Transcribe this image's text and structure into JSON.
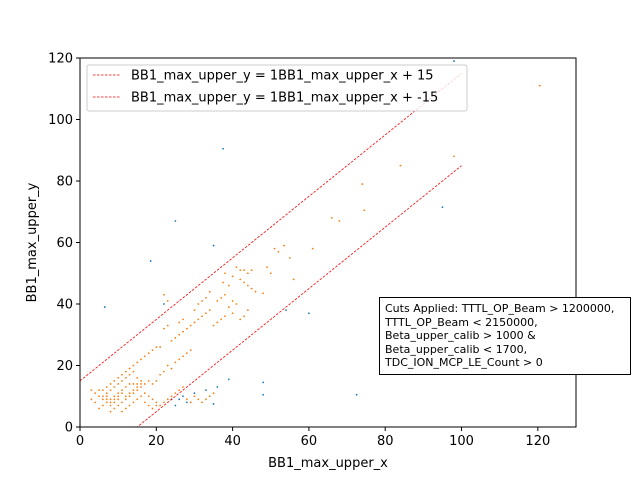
{
  "chart_data": {
    "type": "scatter",
    "xlabel": "BB1_max_upper_x",
    "ylabel": "BB1_max_upper_y",
    "xlim": [
      0,
      130
    ],
    "ylim": [
      0,
      120
    ],
    "xticks": [
      0,
      20,
      40,
      60,
      80,
      100,
      120
    ],
    "yticks": [
      0,
      20,
      40,
      60,
      80,
      100,
      120
    ],
    "grid": false,
    "legend_position": "top-left",
    "annotation": "Cuts Applied: TTTL_OP_Beam > 1200000, TTTL_OP_Beam < 2150000, Beta_upper_calib > 1000 & Beta_upper_calib < 1700, TDC_ION_MCP_LE_Count > 0",
    "lines": [
      {
        "name": "BB1_max_upper_y = 1BB1_max_upper_x + 15",
        "slope": 1,
        "intercept": 15,
        "color": "#ff0000"
      },
      {
        "name": "BB1_max_upper_y = 1BB1_max_upper_x + -15",
        "slope": 1,
        "intercept": -15,
        "color": "#ff0000"
      }
    ],
    "series": [
      {
        "color": "#1f77b4",
        "points": [
          [
            98,
            119
          ],
          [
            37.5,
            90.5
          ],
          [
            25,
            67
          ],
          [
            18.5,
            54
          ],
          [
            35,
            59
          ],
          [
            6.5,
            39
          ],
          [
            22,
            40
          ],
          [
            95,
            71.5
          ],
          [
            60,
            37
          ],
          [
            54,
            38
          ],
          [
            72.5,
            10.5
          ],
          [
            48,
            14.5
          ],
          [
            48,
            10.5
          ],
          [
            39,
            15.5
          ],
          [
            36,
            13
          ],
          [
            35,
            7.5
          ],
          [
            33,
            12
          ],
          [
            30,
            11
          ],
          [
            29,
            8
          ],
          [
            28,
            8
          ],
          [
            27,
            10
          ],
          [
            26,
            9
          ],
          [
            25,
            7
          ],
          [
            24,
            9
          ]
        ]
      },
      {
        "color": "#ff7f0e",
        "points": [
          [
            120.5,
            111
          ],
          [
            98,
            88
          ],
          [
            84,
            85
          ],
          [
            74,
            79
          ],
          [
            74.5,
            70.5
          ],
          [
            66,
            68
          ],
          [
            68,
            67
          ],
          [
            61,
            58
          ],
          [
            51,
            58
          ],
          [
            52,
            57
          ],
          [
            53.5,
            59
          ],
          [
            49,
            52
          ],
          [
            55,
            55
          ],
          [
            50,
            50
          ],
          [
            56,
            48
          ],
          [
            48,
            43.5
          ],
          [
            45,
            51
          ],
          [
            44,
            50
          ],
          [
            43,
            51
          ],
          [
            42,
            51
          ],
          [
            41,
            52
          ],
          [
            40,
            49
          ],
          [
            38,
            50
          ],
          [
            37.5,
            47
          ],
          [
            46,
            44
          ],
          [
            45,
            45
          ],
          [
            44,
            46
          ],
          [
            43,
            47
          ],
          [
            42,
            48
          ],
          [
            39,
            46
          ],
          [
            38,
            43
          ],
          [
            37,
            42
          ],
          [
            36,
            41
          ],
          [
            40,
            41
          ],
          [
            41,
            40
          ],
          [
            39,
            39
          ],
          [
            44,
            38
          ],
          [
            43,
            36
          ],
          [
            42,
            35
          ],
          [
            40,
            37
          ],
          [
            38,
            36
          ],
          [
            37,
            35
          ],
          [
            36,
            34
          ],
          [
            35,
            33
          ],
          [
            34,
            38
          ],
          [
            33,
            37
          ],
          [
            32,
            36
          ],
          [
            31,
            35
          ],
          [
            30,
            34
          ],
          [
            29,
            33
          ],
          [
            28,
            32
          ],
          [
            27,
            31
          ],
          [
            26,
            30
          ],
          [
            25,
            29
          ],
          [
            24,
            28
          ],
          [
            26,
            34
          ],
          [
            27,
            35
          ],
          [
            23,
            33
          ],
          [
            22,
            32
          ],
          [
            21,
            26
          ],
          [
            22,
            43
          ],
          [
            23,
            41
          ],
          [
            30,
            38
          ],
          [
            31,
            40
          ],
          [
            32,
            41
          ],
          [
            33,
            42
          ],
          [
            34,
            44
          ],
          [
            29,
            25
          ],
          [
            28,
            24
          ],
          [
            27,
            23
          ],
          [
            26,
            22
          ],
          [
            25,
            21
          ],
          [
            23,
            20
          ],
          [
            24,
            19
          ],
          [
            22,
            18
          ],
          [
            21,
            17
          ],
          [
            20,
            15
          ],
          [
            19,
            14
          ],
          [
            18,
            15
          ],
          [
            17,
            14
          ],
          [
            16,
            13
          ],
          [
            15,
            12
          ],
          [
            14,
            11
          ],
          [
            13,
            10
          ],
          [
            12,
            9
          ],
          [
            11,
            8
          ],
          [
            10,
            9
          ],
          [
            9,
            8
          ],
          [
            8,
            7
          ],
          [
            7,
            8
          ],
          [
            6,
            7
          ],
          [
            5,
            6
          ],
          [
            4,
            8
          ],
          [
            3,
            9
          ],
          [
            7,
            11
          ],
          [
            8,
            12
          ],
          [
            9,
            13
          ],
          [
            10,
            14
          ],
          [
            11,
            15
          ],
          [
            12,
            16
          ],
          [
            13,
            17
          ],
          [
            14,
            18
          ],
          [
            15,
            16
          ],
          [
            16,
            15
          ],
          [
            17,
            11
          ],
          [
            18,
            10
          ],
          [
            19,
            9
          ],
          [
            20,
            8
          ],
          [
            21,
            7
          ],
          [
            22,
            8
          ],
          [
            23,
            9
          ],
          [
            24,
            10
          ],
          [
            25,
            11
          ],
          [
            26,
            12
          ],
          [
            27,
            13
          ],
          [
            28,
            9
          ],
          [
            29,
            8
          ],
          [
            30,
            10
          ],
          [
            31,
            9
          ],
          [
            32,
            8
          ],
          [
            33,
            9
          ],
          [
            34,
            10
          ],
          [
            35,
            11
          ],
          [
            8,
            5
          ],
          [
            9,
            6
          ],
          [
            10,
            7
          ],
          [
            11,
            5
          ],
          [
            12,
            6
          ],
          [
            13,
            7
          ],
          [
            14,
            8
          ],
          [
            15,
            9
          ],
          [
            16,
            10
          ],
          [
            17,
            8
          ],
          [
            18,
            7
          ],
          [
            19,
            6
          ],
          [
            20,
            7
          ],
          [
            6,
            10
          ],
          [
            7,
            9
          ],
          [
            8,
            9
          ],
          [
            9,
            10
          ],
          [
            10,
            10
          ],
          [
            11,
            11
          ],
          [
            12,
            10
          ],
          [
            13,
            11
          ],
          [
            14,
            12
          ],
          [
            15,
            13
          ],
          [
            5,
            12
          ],
          [
            6,
            12
          ],
          [
            7,
            13
          ],
          [
            8,
            14
          ],
          [
            9,
            15
          ],
          [
            10,
            16
          ],
          [
            11,
            17
          ],
          [
            12,
            18
          ],
          [
            13,
            19
          ],
          [
            14,
            20
          ],
          [
            15,
            21
          ],
          [
            16,
            22
          ],
          [
            17,
            23
          ],
          [
            18,
            24
          ],
          [
            19,
            25
          ],
          [
            20,
            26
          ],
          [
            8,
            8
          ],
          [
            9,
            9
          ],
          [
            10,
            11
          ],
          [
            11,
            12
          ],
          [
            12,
            13
          ],
          [
            13,
            14
          ],
          [
            14,
            14
          ],
          [
            15,
            14
          ],
          [
            16,
            14
          ],
          [
            7,
            10
          ],
          [
            6,
            9
          ],
          [
            5,
            10
          ],
          [
            4,
            11
          ],
          [
            3,
            12
          ]
        ]
      }
    ]
  }
}
